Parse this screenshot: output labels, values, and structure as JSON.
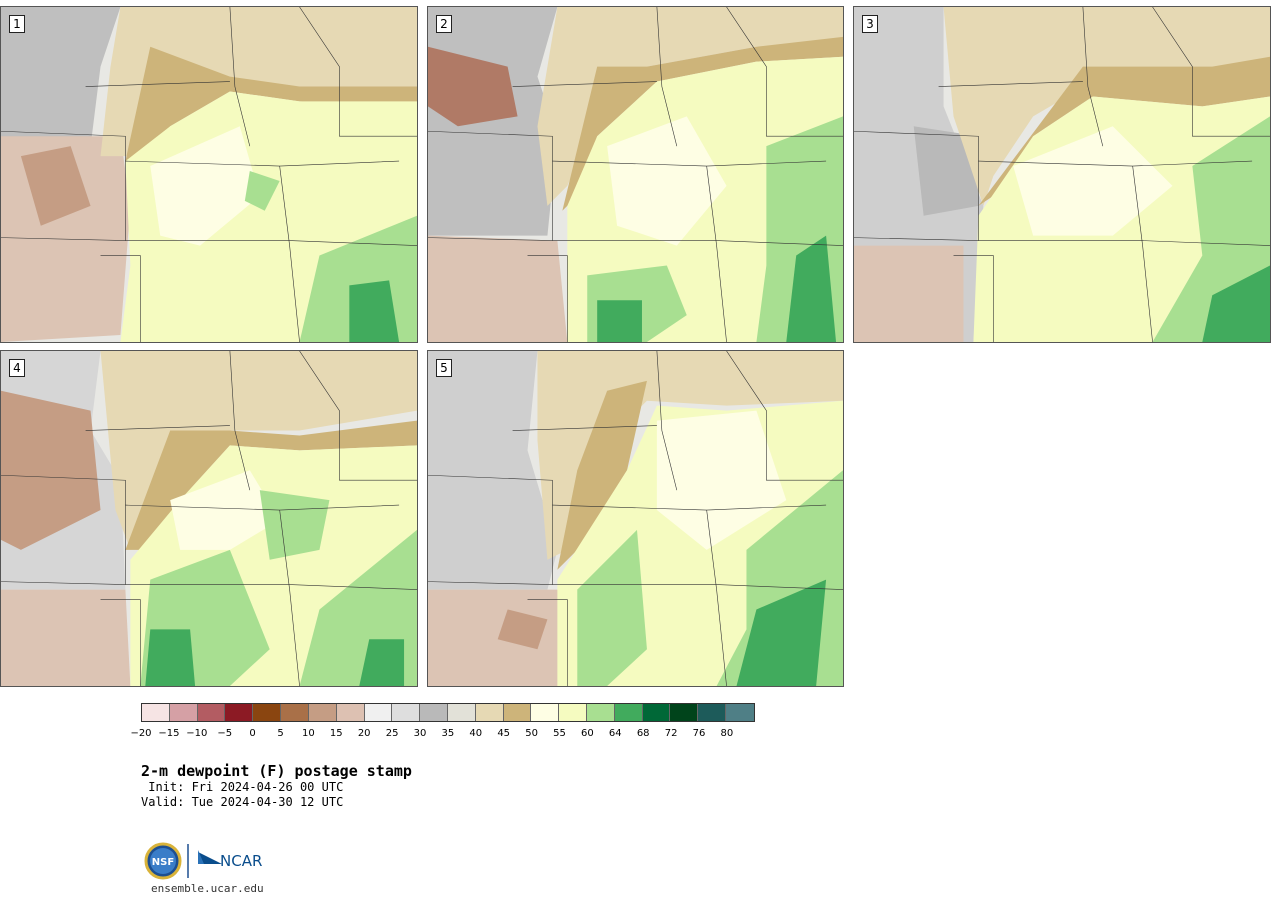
{
  "panels": [
    {
      "number": "1"
    },
    {
      "number": "2"
    },
    {
      "number": "3"
    },
    {
      "number": "4"
    },
    {
      "number": "5"
    }
  ],
  "colorbar": {
    "colors": [
      "#f6e4e4",
      "#d5a0a5",
      "#b35c62",
      "#8c1a24",
      "#8a4510",
      "#a97048",
      "#c59d84",
      "#ddc1b2",
      "#f0f0f0",
      "#dedede",
      "#b9b9b9",
      "#e2e1d8",
      "#e6d9b4",
      "#cdb47a",
      "#fefee4",
      "#f5fbc0",
      "#a8df91",
      "#41ab5d",
      "#006837",
      "#00441b",
      "#1d5b5a",
      "#4f7f86"
    ],
    "tick_labels": [
      "−20",
      "−15",
      "−10",
      "−5",
      "0",
      "5",
      "10",
      "15",
      "20",
      "25",
      "30",
      "35",
      "40",
      "45",
      "50",
      "55",
      "60",
      "64",
      "68",
      "72",
      "76",
      "80"
    ]
  },
  "title": "2-m dewpoint (F) postage stamp",
  "init": " Init: Fri 2024-04-26 00 UTC",
  "valid": "Valid: Tue 2024-04-30 12 UTC",
  "logos": [
    "NSF",
    "NCAR"
  ],
  "site": "ensemble.ucar.edu"
}
